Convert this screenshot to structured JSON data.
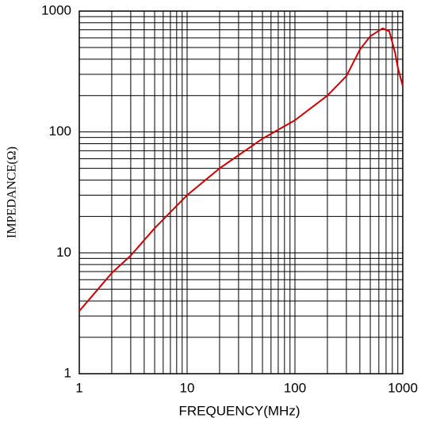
{
  "chart_data": {
    "type": "line",
    "xlabel": "FREQUENCY(MHz)",
    "ylabel": "IMPEDANCE(Ω)",
    "x": [
      1,
      2,
      3,
      5,
      10,
      20,
      50,
      100,
      200,
      300,
      400,
      500,
      650,
      750,
      850,
      900,
      1000
    ],
    "series": [
      {
        "name": "Impedance",
        "color": "#d40000",
        "values": [
          3.3,
          6.8,
          9.5,
          16,
          30,
          50,
          88,
          125,
          200,
          290,
          480,
          620,
          720,
          680,
          450,
          340,
          240
        ]
      }
    ],
    "xlim": [
      1,
      1000
    ],
    "ylim": [
      1,
      1000
    ],
    "xticks": [
      1,
      10,
      100,
      1000
    ],
    "yticks": [
      1,
      10,
      100,
      1000
    ],
    "xscale": "log",
    "yscale": "log",
    "grid": true,
    "minor_grid": true
  }
}
